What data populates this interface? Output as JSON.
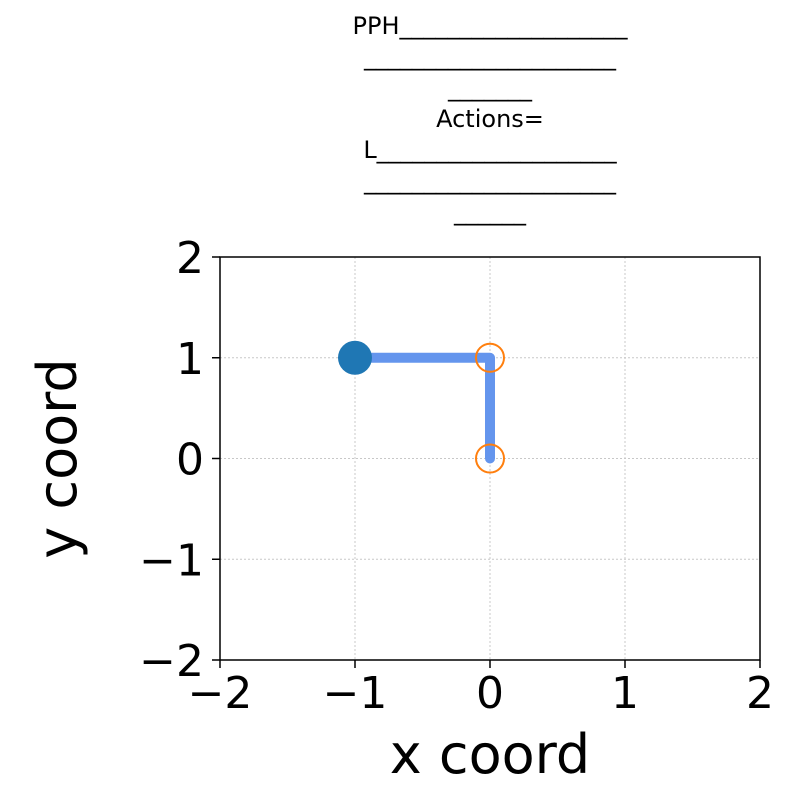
{
  "chart_data": {
    "type": "line",
    "title_lines": [
      "PPH___________________",
      "_____________________",
      "_______",
      "Actions=",
      "L____________________",
      "_____________________",
      "______"
    ],
    "xlabel": "x coord",
    "ylabel": "y coord",
    "xlim": [
      -2,
      2
    ],
    "ylim": [
      -2,
      2
    ],
    "xticks": [
      -2,
      -1,
      0,
      1,
      2
    ],
    "yticks": [
      -2,
      -1,
      0,
      1,
      2
    ],
    "xtick_labels": [
      "−2",
      "−1",
      "0",
      "1",
      "2"
    ],
    "ytick_labels": [
      "−2",
      "−1",
      "0",
      "1",
      "2"
    ],
    "grid": true,
    "series": [
      {
        "kind": "path",
        "color": "#6495ed",
        "x": [
          -1,
          0,
          0
        ],
        "y": [
          1,
          1,
          0
        ]
      },
      {
        "kind": "agent",
        "color": "#1f77b4",
        "x": [
          -1
        ],
        "y": [
          1
        ]
      },
      {
        "kind": "waypoints",
        "color": "#ff7f0e",
        "x": [
          0,
          0
        ],
        "y": [
          1,
          0
        ]
      }
    ]
  }
}
